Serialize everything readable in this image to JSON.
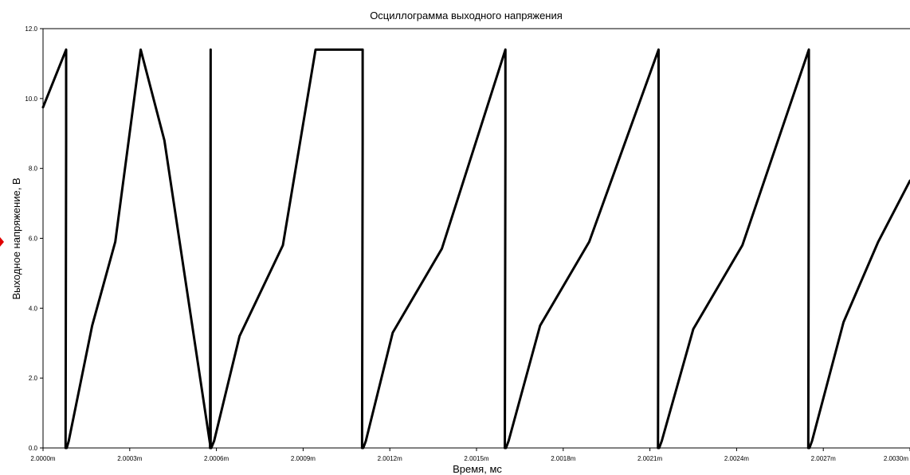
{
  "colors": {
    "line": "#000000",
    "axis": "#000000",
    "background": "#ffffff",
    "marker": "#e00000"
  },
  "chart_data": {
    "type": "line",
    "title": "Осциллограмма выходного напряжения",
    "xlabel": "Время, мс",
    "ylabel": "Выходное напряжение, В",
    "x_tick_labels": [
      "2.0000m",
      "2.0003m",
      "2.0006m",
      "2.0009m",
      "2.0012m",
      "2.0015m",
      "2.0018m",
      "2.0021m",
      "2.0024m",
      "2.0027m",
      "2.0030m"
    ],
    "y_tick_labels": [
      "0.0",
      "2.0",
      "4.0",
      "6.0",
      "8.0",
      "10.0",
      "12.0"
    ],
    "x_ticks": [
      2.0,
      2.0003,
      2.0006,
      2.0009,
      2.0012,
      2.0015,
      2.0018,
      2.0021,
      2.0024,
      2.0027,
      2.003
    ],
    "y_ticks": [
      0,
      2,
      4,
      6,
      8,
      10,
      12
    ],
    "xlim": [
      2.0,
      2.003
    ],
    "ylim": [
      0,
      12
    ],
    "grid": false,
    "series": [
      {
        "values_x": [
          2.0,
          2.00008,
          2.00008,
          2.000078,
          2.000082,
          2.000089,
          2.00017,
          2.00025,
          2.000338,
          2.00042,
          2.00058,
          2.00058,
          2.000578,
          2.000582,
          2.000592,
          2.00068,
          2.00083,
          2.000943,
          2.001106,
          2.001106,
          2.001104,
          2.001108,
          2.001117,
          2.00121,
          2.00138,
          2.0016,
          2.0016,
          2.001598,
          2.001602,
          2.001611,
          2.00172,
          2.00189,
          2.00213,
          2.00213,
          2.002128,
          2.002132,
          2.002141,
          2.00225,
          2.00242,
          2.00265,
          2.00265,
          2.002648,
          2.002652,
          2.002661,
          2.00277,
          2.00289,
          2.003
        ],
        "values_y": [
          9.75,
          11.4,
          8.8,
          0.0,
          0.0,
          0.2,
          3.5,
          5.9,
          11.4,
          8.8,
          0.0,
          11.4,
          0.0,
          0.0,
          0.2,
          3.2,
          5.8,
          11.4,
          11.4,
          8.8,
          0.0,
          0.0,
          0.2,
          3.3,
          5.7,
          11.4,
          8.8,
          0.0,
          0.0,
          0.2,
          3.5,
          5.9,
          11.4,
          8.8,
          0.0,
          0.0,
          0.2,
          3.4,
          5.8,
          11.4,
          8.8,
          0.0,
          0.0,
          0.2,
          3.6,
          5.9,
          7.65
        ]
      }
    ]
  }
}
